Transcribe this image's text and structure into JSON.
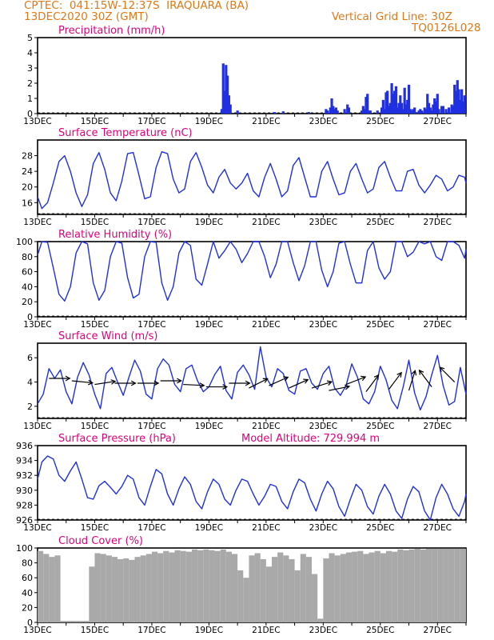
{
  "header": {
    "line1": "CPTEC:  041:15W-12:37S  IRAQUARA (BA)",
    "line2": "13DEC2020 30Z (GMT)",
    "grid_note": "Vertical Grid Line: 30Z",
    "run_id": "TQ0126L028"
  },
  "colors": {
    "header_text": "#e07818",
    "panel_title": "#e0007a",
    "series_line": "#2030e0",
    "precip_bar": "#2030e0",
    "cloud_bar": "#a9a9a9",
    "wind_arrow": "#000000"
  },
  "chart_data": [
    {
      "type": "bar",
      "title": "Precipitation (mm/h)",
      "x_ticks": [
        "13DEC",
        "15DEC",
        "17DEC",
        "19DEC",
        "21DEC",
        "23DEC",
        "25DEC",
        "27DEC"
      ],
      "x_range_days": [
        13,
        28
      ],
      "ylim": [
        0,
        5
      ],
      "y_ticks": [
        "0",
        "1",
        "2",
        "3",
        "4",
        "5"
      ],
      "x": [
        19.45,
        19.5,
        19.55,
        19.6,
        19.65,
        19.7,
        19.75,
        20.0,
        21.3,
        21.6,
        22.5,
        23.1,
        23.15,
        23.25,
        23.3,
        23.35,
        23.4,
        23.45,
        23.5,
        23.75,
        23.85,
        23.9,
        24.35,
        24.4,
        24.45,
        24.5,
        24.55,
        24.6,
        24.65,
        24.9,
        25.05,
        25.1,
        25.15,
        25.2,
        25.25,
        25.3,
        25.35,
        25.4,
        25.45,
        25.5,
        25.55,
        25.6,
        25.65,
        25.7,
        25.75,
        25.8,
        25.85,
        25.9,
        25.95,
        26.0,
        26.05,
        26.1,
        26.15,
        26.2,
        26.25,
        26.35,
        26.4,
        26.45,
        26.55,
        26.6,
        26.65,
        26.7,
        26.75,
        26.8,
        26.85,
        26.9,
        26.95,
        27.0,
        27.05,
        27.15,
        27.2,
        27.3,
        27.4,
        27.5,
        27.55,
        27.6,
        27.65,
        27.7,
        27.75,
        27.8,
        27.85,
        27.9,
        27.95
      ],
      "values": [
        0.3,
        3.3,
        1.5,
        3.2,
        2.5,
        1.2,
        0.6,
        0.2,
        0.1,
        0.15,
        0.1,
        0.3,
        0.2,
        0.4,
        1.0,
        0.5,
        0.3,
        0.4,
        0.2,
        0.3,
        0.6,
        0.4,
        0.2,
        0.5,
        0.3,
        1.1,
        1.3,
        0.2,
        0.2,
        0.2,
        0.4,
        0.9,
        0.3,
        1.4,
        1.5,
        0.5,
        0.7,
        2.0,
        1.3,
        1.5,
        1.8,
        0.4,
        0.7,
        1.2,
        0.7,
        0.3,
        1.7,
        0.6,
        0.9,
        1.9,
        0.3,
        0.2,
        0.3,
        0.4,
        0.1,
        0.2,
        0.3,
        0.2,
        0.4,
        0.3,
        1.3,
        0.7,
        0.4,
        0.2,
        0.6,
        1.0,
        0.8,
        1.3,
        0.3,
        0.5,
        0.5,
        0.3,
        0.4,
        0.6,
        0.5,
        1.9,
        1.5,
        2.2,
        1.6,
        0.9,
        1.6,
        0.8,
        1.2
      ]
    },
    {
      "type": "line",
      "title": "Surface Temperature (nC)",
      "x_ticks": [
        "13DEC",
        "15DEC",
        "17DEC",
        "19DEC",
        "21DEC",
        "23DEC",
        "25DEC",
        "27DEC"
      ],
      "x_range_days": [
        13,
        28
      ],
      "ylim": [
        13,
        32
      ],
      "y_ticks": [
        "16",
        "20",
        "24",
        "28"
      ],
      "x": [
        13.0,
        13.15,
        13.35,
        13.55,
        13.75,
        13.95,
        14.15,
        14.35,
        14.55,
        14.75,
        14.95,
        15.15,
        15.35,
        15.55,
        15.75,
        15.95,
        16.15,
        16.35,
        16.55,
        16.75,
        16.95,
        17.15,
        17.35,
        17.55,
        17.75,
        17.95,
        18.15,
        18.35,
        18.55,
        18.75,
        18.95,
        19.15,
        19.35,
        19.55,
        19.75,
        19.95,
        20.15,
        20.35,
        20.55,
        20.75,
        20.95,
        21.15,
        21.35,
        21.55,
        21.75,
        21.95,
        22.15,
        22.35,
        22.55,
        22.75,
        22.95,
        23.15,
        23.35,
        23.55,
        23.75,
        23.95,
        24.15,
        24.35,
        24.55,
        24.75,
        24.95,
        25.15,
        25.35,
        25.55,
        25.75,
        25.95,
        26.15,
        26.35,
        26.55,
        26.75,
        26.95,
        27.15,
        27.35,
        27.55,
        27.75,
        27.95,
        28.0
      ],
      "values": [
        17.5,
        14.5,
        16.0,
        21.0,
        26.5,
        28.0,
        24.0,
        18.5,
        15.0,
        18.0,
        26.0,
        28.8,
        24.5,
        18.5,
        16.5,
        21.5,
        28.5,
        28.8,
        23.0,
        17.0,
        17.5,
        25.0,
        29.0,
        28.5,
        22.0,
        18.5,
        19.5,
        26.5,
        28.8,
        25.0,
        20.5,
        18.5,
        22.5,
        24.5,
        21.0,
        19.5,
        21.0,
        23.5,
        19.0,
        17.5,
        22.5,
        26.0,
        22.0,
        17.5,
        19.0,
        25.5,
        27.5,
        22.5,
        17.5,
        17.5,
        24.0,
        26.5,
        22.0,
        18.0,
        18.5,
        24.0,
        26.0,
        22.0,
        18.5,
        19.5,
        25.0,
        26.5,
        22.5,
        19.0,
        19.0,
        24.0,
        24.5,
        20.5,
        18.5,
        20.5,
        23.0,
        22.0,
        19.0,
        20.0,
        23.0,
        22.5,
        21.0
      ]
    },
    {
      "type": "line",
      "title": "Relative Humidity (%)",
      "x_ticks": [
        "13DEC",
        "15DEC",
        "17DEC",
        "19DEC",
        "21DEC",
        "23DEC",
        "25DEC",
        "27DEC"
      ],
      "x_range_days": [
        13,
        28
      ],
      "ylim": [
        0,
        100
      ],
      "y_ticks": [
        "0",
        "20",
        "40",
        "60",
        "80",
        "100"
      ],
      "x": [
        13.0,
        13.15,
        13.35,
        13.55,
        13.75,
        13.95,
        14.15,
        14.35,
        14.55,
        14.75,
        14.95,
        15.15,
        15.35,
        15.55,
        15.75,
        15.95,
        16.15,
        16.35,
        16.55,
        16.75,
        16.95,
        17.15,
        17.35,
        17.55,
        17.75,
        17.95,
        18.15,
        18.35,
        18.55,
        18.75,
        18.95,
        19.15,
        19.35,
        19.55,
        19.75,
        19.95,
        20.15,
        20.35,
        20.55,
        20.75,
        20.95,
        21.15,
        21.35,
        21.55,
        21.75,
        21.95,
        22.15,
        22.35,
        22.55,
        22.75,
        22.95,
        23.15,
        23.35,
        23.55,
        23.75,
        23.95,
        24.15,
        24.35,
        24.55,
        24.75,
        24.95,
        25.15,
        25.35,
        25.55,
        25.75,
        25.95,
        26.15,
        26.35,
        26.55,
        26.75,
        26.95,
        27.15,
        27.35,
        27.55,
        27.75,
        27.95,
        28.0
      ],
      "values": [
        82,
        100,
        99,
        65,
        30,
        21,
        40,
        85,
        100,
        97,
        45,
        22,
        35,
        80,
        100,
        98,
        52,
        25,
        30,
        80,
        100,
        99,
        45,
        22,
        40,
        85,
        100,
        95,
        50,
        42,
        70,
        100,
        78,
        88,
        100,
        90,
        72,
        84,
        100,
        100,
        80,
        52,
        70,
        100,
        100,
        72,
        48,
        68,
        100,
        100,
        62,
        40,
        60,
        98,
        100,
        70,
        45,
        45,
        88,
        100,
        65,
        50,
        60,
        100,
        100,
        80,
        86,
        100,
        97,
        100,
        80,
        75,
        100,
        100,
        95,
        78,
        90
      ]
    },
    {
      "type": "line",
      "title": "Surface Wind (m/s)",
      "x_ticks": [
        "13DEC",
        "15DEC",
        "17DEC",
        "19DEC",
        "21DEC",
        "23DEC",
        "25DEC",
        "27DEC"
      ],
      "x_range_days": [
        13,
        28
      ],
      "ylim": [
        1,
        7.2
      ],
      "y_ticks": [
        "2",
        "4",
        "6"
      ],
      "x": [
        13.0,
        13.2,
        13.4,
        13.6,
        13.8,
        14.0,
        14.2,
        14.4,
        14.6,
        14.8,
        15.0,
        15.2,
        15.4,
        15.6,
        15.8,
        16.0,
        16.2,
        16.4,
        16.6,
        16.8,
        17.0,
        17.2,
        17.4,
        17.6,
        17.8,
        18.0,
        18.2,
        18.4,
        18.6,
        18.8,
        19.0,
        19.2,
        19.4,
        19.6,
        19.8,
        20.0,
        20.2,
        20.4,
        20.6,
        20.8,
        21.0,
        21.2,
        21.4,
        21.6,
        21.8,
        22.0,
        22.2,
        22.4,
        22.6,
        22.8,
        23.0,
        23.2,
        23.4,
        23.6,
        23.8,
        24.0,
        24.2,
        24.4,
        24.6,
        24.8,
        25.0,
        25.2,
        25.4,
        25.6,
        25.8,
        26.0,
        26.2,
        26.4,
        26.6,
        26.8,
        27.0,
        27.2,
        27.4,
        27.6,
        27.8,
        28.0
      ],
      "values": [
        2.2,
        3.0,
        5.1,
        4.3,
        5.0,
        3.2,
        2.2,
        4.4,
        5.6,
        4.6,
        3.0,
        1.8,
        4.7,
        5.2,
        4.0,
        2.9,
        4.4,
        5.8,
        4.9,
        3.0,
        2.6,
        5.1,
        5.9,
        5.4,
        3.8,
        3.2,
        5.1,
        5.4,
        4.1,
        3.2,
        3.6,
        4.6,
        5.3,
        3.3,
        2.6,
        4.8,
        5.4,
        4.6,
        3.4,
        6.9,
        4.4,
        3.6,
        5.1,
        4.7,
        3.3,
        3.0,
        4.9,
        5.1,
        3.9,
        3.4,
        4.7,
        5.3,
        3.5,
        2.9,
        3.7,
        5.5,
        4.4,
        2.6,
        2.2,
        3.2,
        5.3,
        4.2,
        2.5,
        1.8,
        3.6,
        5.8,
        3.1,
        1.7,
        2.8,
        4.6,
        6.2,
        3.7,
        2.1,
        2.4,
        5.2,
        3.0
      ],
      "arrows": [
        {
          "x": 13.4,
          "y": 4.3,
          "dx": 1,
          "dy": 0
        },
        {
          "x": 14.2,
          "y": 4.1,
          "dx": 1,
          "dy": -0.1
        },
        {
          "x": 15.0,
          "y": 3.8,
          "dx": 1,
          "dy": 0.15
        },
        {
          "x": 15.7,
          "y": 3.9,
          "dx": 1,
          "dy": 0
        },
        {
          "x": 16.5,
          "y": 3.9,
          "dx": 1,
          "dy": 0
        },
        {
          "x": 17.3,
          "y": 4.1,
          "dx": 1,
          "dy": 0
        },
        {
          "x": 18.1,
          "y": 3.8,
          "dx": 1,
          "dy": -0.05
        },
        {
          "x": 18.9,
          "y": 3.6,
          "dx": 1,
          "dy": 0
        },
        {
          "x": 19.7,
          "y": 3.9,
          "dx": 1,
          "dy": 0
        },
        {
          "x": 20.4,
          "y": 3.5,
          "dx": 0.9,
          "dy": 0.45
        },
        {
          "x": 21.1,
          "y": 3.7,
          "dx": 0.9,
          "dy": 0.4
        },
        {
          "x": 21.8,
          "y": 3.5,
          "dx": 0.9,
          "dy": 0.4
        },
        {
          "x": 22.6,
          "y": 3.5,
          "dx": 0.95,
          "dy": 0.3
        },
        {
          "x": 23.2,
          "y": 3.3,
          "dx": 1,
          "dy": 0.2
        },
        {
          "x": 23.8,
          "y": 3.8,
          "dx": 0.9,
          "dy": 0.35
        },
        {
          "x": 24.5,
          "y": 3.2,
          "dx": 0.6,
          "dy": 0.8
        },
        {
          "x": 25.3,
          "y": 3.4,
          "dx": 0.6,
          "dy": 0.8
        },
        {
          "x": 26.0,
          "y": 3.3,
          "dx": 0.3,
          "dy": 0.95
        },
        {
          "x": 26.8,
          "y": 3.6,
          "dx": -0.6,
          "dy": 0.8
        },
        {
          "x": 27.6,
          "y": 4.0,
          "dx": -0.7,
          "dy": 0.7
        }
      ]
    },
    {
      "type": "line",
      "title": "Surface Pressure (hPa)",
      "annotation": "Model Altitude: 729.994 m",
      "x_ticks": [
        "13DEC",
        "15DEC",
        "17DEC",
        "19DEC",
        "21DEC",
        "23DEC",
        "25DEC",
        "27DEC"
      ],
      "x_range_days": [
        13,
        28
      ],
      "ylim": [
        926,
        936
      ],
      "y_ticks": [
        "926",
        "928",
        "930",
        "932",
        "934",
        "936"
      ],
      "x": [
        13.0,
        13.15,
        13.35,
        13.55,
        13.75,
        13.95,
        14.15,
        14.35,
        14.55,
        14.75,
        14.95,
        15.15,
        15.35,
        15.55,
        15.75,
        15.95,
        16.15,
        16.35,
        16.55,
        16.75,
        16.95,
        17.15,
        17.35,
        17.55,
        17.75,
        17.95,
        18.15,
        18.35,
        18.55,
        18.75,
        18.95,
        19.15,
        19.35,
        19.55,
        19.75,
        19.95,
        20.15,
        20.35,
        20.55,
        20.75,
        20.95,
        21.15,
        21.35,
        21.55,
        21.75,
        21.95,
        22.15,
        22.35,
        22.55,
        22.75,
        22.95,
        23.15,
        23.35,
        23.55,
        23.75,
        23.95,
        24.15,
        24.35,
        24.55,
        24.75,
        24.95,
        25.15,
        25.35,
        25.55,
        25.75,
        25.95,
        26.15,
        26.35,
        26.55,
        26.75,
        26.95,
        27.15,
        27.35,
        27.55,
        27.75,
        27.95,
        28.0
      ],
      "values": [
        931.5,
        933.8,
        934.6,
        934.2,
        932.0,
        931.2,
        932.6,
        933.8,
        931.5,
        929.0,
        928.8,
        930.6,
        931.2,
        930.4,
        929.5,
        930.5,
        932.0,
        931.5,
        929.0,
        928.0,
        930.5,
        932.8,
        932.2,
        929.5,
        928.0,
        930.2,
        931.8,
        930.8,
        928.5,
        927.5,
        929.8,
        931.5,
        930.8,
        928.8,
        928.0,
        930.0,
        931.5,
        931.2,
        929.5,
        928.0,
        929.2,
        930.8,
        930.5,
        928.5,
        927.5,
        929.8,
        931.5,
        931.0,
        928.8,
        927.2,
        929.5,
        931.2,
        930.2,
        927.8,
        926.5,
        928.8,
        930.8,
        930.0,
        927.8,
        926.8,
        929.2,
        930.8,
        929.5,
        927.2,
        926.2,
        928.8,
        930.5,
        929.8,
        927.2,
        926.0,
        929.0,
        930.8,
        929.5,
        927.5,
        926.5,
        928.5,
        929.5
      ]
    },
    {
      "type": "bar",
      "title": "Cloud Cover (%)",
      "x_ticks": [
        "13DEC",
        "15DEC",
        "17DEC",
        "19DEC",
        "21DEC",
        "23DEC",
        "25DEC",
        "27DEC"
      ],
      "x_range_days": [
        13,
        28
      ],
      "ylim": [
        0,
        100
      ],
      "y_ticks": [
        "0",
        "20",
        "40",
        "60",
        "80",
        "100"
      ],
      "x": [
        13.0,
        13.2,
        13.4,
        13.6,
        13.8,
        14.0,
        14.2,
        14.4,
        14.6,
        14.8,
        15.0,
        15.2,
        15.4,
        15.6,
        15.8,
        16.0,
        16.2,
        16.4,
        16.6,
        16.8,
        17.0,
        17.2,
        17.4,
        17.6,
        17.8,
        18.0,
        18.2,
        18.4,
        18.6,
        18.8,
        19.0,
        19.2,
        19.4,
        19.6,
        19.8,
        20.0,
        20.2,
        20.4,
        20.6,
        20.8,
        21.0,
        21.2,
        21.4,
        21.6,
        21.8,
        22.0,
        22.2,
        22.4,
        22.6,
        22.8,
        23.0,
        23.2,
        23.4,
        23.6,
        23.8,
        24.0,
        24.2,
        24.4,
        24.6,
        24.8,
        25.0,
        25.2,
        25.4,
        25.6,
        25.8,
        26.0,
        26.2,
        26.4,
        26.6,
        26.8,
        27.0,
        27.2,
        27.4,
        27.6,
        27.8
      ],
      "values": [
        96,
        92,
        88,
        90,
        2,
        2,
        2,
        2,
        2,
        75,
        93,
        92,
        90,
        88,
        85,
        86,
        84,
        88,
        90,
        92,
        95,
        93,
        96,
        94,
        97,
        96,
        95,
        98,
        97,
        98,
        97,
        96,
        98,
        95,
        92,
        70,
        60,
        90,
        93,
        85,
        75,
        88,
        94,
        90,
        85,
        70,
        92,
        88,
        65,
        5,
        86,
        93,
        90,
        92,
        94,
        95,
        96,
        92,
        94,
        96,
        93,
        96,
        95,
        98,
        97,
        98,
        99,
        98,
        99,
        99,
        99,
        99,
        99,
        99,
        99
      ]
    }
  ]
}
